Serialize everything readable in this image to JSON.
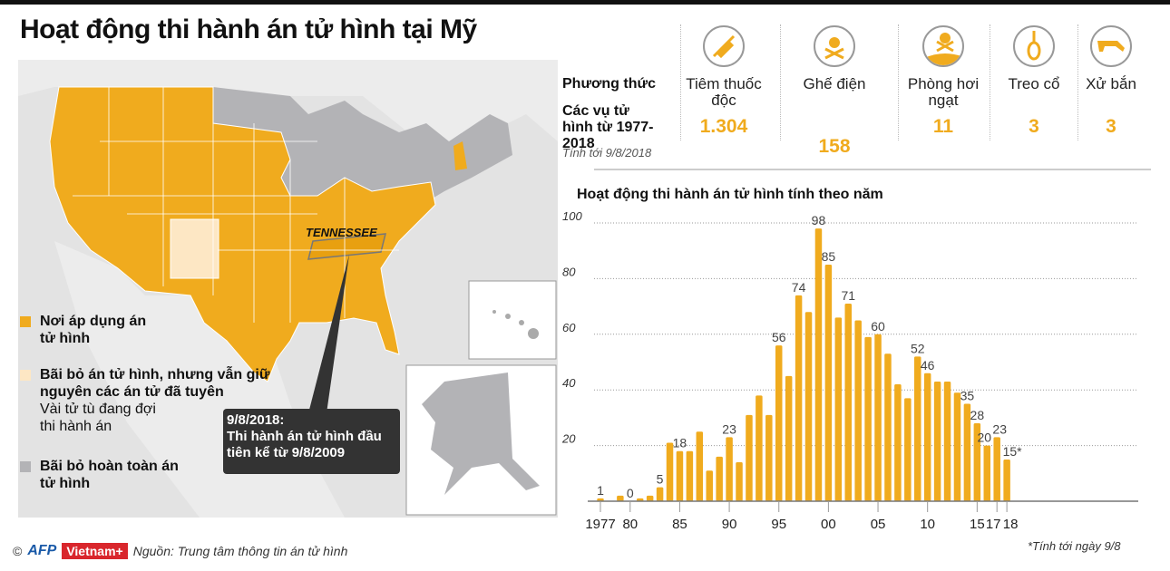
{
  "title": "Hoạt động thi hành án tử hình tại Mỹ",
  "map": {
    "state_label": "TENNESSEE",
    "callout": [
      "9/8/2018:",
      "Thi hành án tử hình đầu",
      " tiên kể từ 9/8/2009"
    ],
    "colors": {
      "death_penalty": "#f0ab1e",
      "moratorium": "#fde7c4",
      "abolished": "#b3b3b6",
      "background": "#e3e3e3"
    }
  },
  "legend": [
    {
      "label": "Nơi áp dụng án tử hình",
      "color": "#f0ab1e"
    },
    {
      "label": "Bãi bỏ án tử hình, nhưng vẫn giữ nguyên các án tử đã tuyên",
      "sub": "Vài tử tù đang đợi thi hành án",
      "color": "#fde7c4"
    },
    {
      "label": "Bãi bỏ hoàn toàn án tử hình",
      "color": "#b3b3b6"
    }
  ],
  "methods": {
    "row_method": "Phương thức",
    "row_count": "Các vụ tử hình từ 1977-2018",
    "note": "Tính tới 9/8/2018",
    "items": [
      {
        "name": "Tiêm thuốc độc",
        "count": "1.304",
        "icon": "syringe-icon"
      },
      {
        "name": "Ghế điện",
        "count": "158",
        "icon": "electric-skull-icon"
      },
      {
        "name": "Phòng hơi ngạt",
        "count": "11",
        "icon": "gas-skull-icon"
      },
      {
        "name": "Treo cổ",
        "count": "3",
        "icon": "noose-icon"
      },
      {
        "name": "Xử bắn",
        "count": "3",
        "icon": "rifle-icon"
      }
    ]
  },
  "chart_data": {
    "type": "bar",
    "title": "Hoạt động thi hành án tử hình tính theo năm",
    "x": [
      1977,
      1978,
      1979,
      1980,
      1981,
      1982,
      1983,
      1984,
      1985,
      1986,
      1987,
      1988,
      1989,
      1990,
      1991,
      1992,
      1993,
      1994,
      1995,
      1996,
      1997,
      1998,
      1999,
      2000,
      2001,
      2002,
      2003,
      2004,
      2005,
      2006,
      2007,
      2008,
      2009,
      2010,
      2011,
      2012,
      2013,
      2014,
      2015,
      2016,
      2017,
      2018
    ],
    "values": [
      1,
      0,
      2,
      0,
      1,
      2,
      5,
      21,
      18,
      18,
      25,
      11,
      16,
      23,
      14,
      31,
      38,
      31,
      56,
      45,
      74,
      68,
      98,
      85,
      66,
      71,
      65,
      59,
      60,
      53,
      42,
      37,
      52,
      46,
      43,
      43,
      39,
      35,
      28,
      20,
      23,
      15
    ],
    "data_labels": {
      "1977": "1",
      "1980": "0",
      "1983": "5",
      "1985": "18",
      "1990": "23",
      "1995": "56",
      "1997": "74",
      "1999": "98",
      "2000": "85",
      "2002": "71",
      "2005": "60",
      "2009": "52",
      "2010": "46",
      "2014": "35",
      "2015": "28",
      "2016": "20",
      "2017": "23",
      "2018": "15*"
    },
    "x_ticks": [
      {
        "year": 1977,
        "label": "1977"
      },
      {
        "year": 1980,
        "label": "80"
      },
      {
        "year": 1985,
        "label": "85"
      },
      {
        "year": 1990,
        "label": "90"
      },
      {
        "year": 1995,
        "label": "95"
      },
      {
        "year": 2000,
        "label": "00"
      },
      {
        "year": 2005,
        "label": "05"
      },
      {
        "year": 2010,
        "label": "10"
      },
      {
        "year": 2015,
        "label": "15"
      },
      {
        "year": 2017,
        "label": "17"
      },
      {
        "year": 2018,
        "label": "18"
      }
    ],
    "y_ticks": [
      20,
      40,
      60,
      80,
      100
    ],
    "ylim": [
      0,
      100
    ],
    "grid": true,
    "bar_color": "#f0ab1e",
    "footnote": "*Tính tới ngày 9/8"
  },
  "source": {
    "copyright": "©",
    "afp": "AFP",
    "vietnam": "Vietnam+",
    "text": "Nguồn: Trung tâm thông tin án tử hình"
  }
}
